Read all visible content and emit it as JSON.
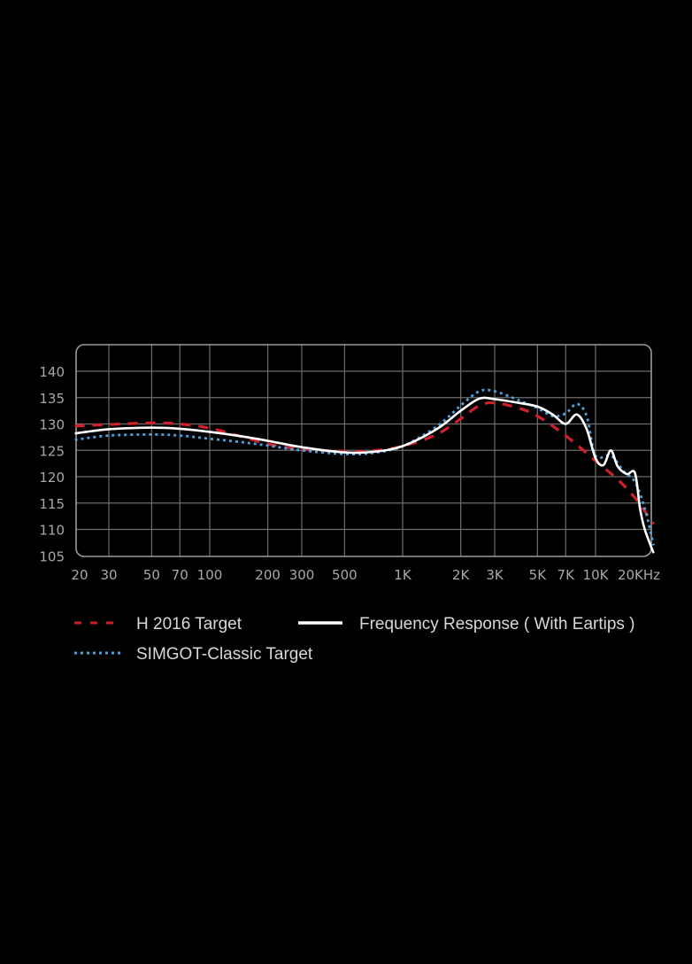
{
  "chart_data": {
    "type": "line",
    "title": "",
    "xlabel": "",
    "ylabel": "",
    "x_scale": "log",
    "xlim": [
      20,
      20000
    ],
    "ylim": [
      105,
      140
    ],
    "grid": true,
    "legend_position": "bottom",
    "y_ticks": [
      140,
      135,
      130,
      125,
      120,
      115,
      110,
      105
    ],
    "x_ticks": [
      {
        "value": 20,
        "label": "20"
      },
      {
        "value": 30,
        "label": "30"
      },
      {
        "value": 50,
        "label": "50"
      },
      {
        "value": 70,
        "label": "70"
      },
      {
        "value": 100,
        "label": "100"
      },
      {
        "value": 200,
        "label": "200"
      },
      {
        "value": 300,
        "label": "300"
      },
      {
        "value": 500,
        "label": "500"
      },
      {
        "value": 1000,
        "label": "1K"
      },
      {
        "value": 2000,
        "label": "2K"
      },
      {
        "value": 3000,
        "label": "3K"
      },
      {
        "value": 5000,
        "label": "5K"
      },
      {
        "value": 7000,
        "label": "7K"
      },
      {
        "value": 10000,
        "label": "10K"
      },
      {
        "value": 20000,
        "label": "20KHz"
      }
    ],
    "series": [
      {
        "name": "H 2016  Target",
        "color": "#d0202c",
        "style": "dashed",
        "x": [
          20,
          30,
          50,
          70,
          100,
          150,
          200,
          300,
          500,
          700,
          1000,
          1500,
          2000,
          2500,
          3000,
          4000,
          5000,
          7000,
          10000,
          13000,
          16000,
          20000
        ],
        "y": [
          129.6,
          129.9,
          130.2,
          130.0,
          129.2,
          127.5,
          126.2,
          125.2,
          124.8,
          124.9,
          125.8,
          128.0,
          131.0,
          133.5,
          134.0,
          133.0,
          131.5,
          127.8,
          123.0,
          119.5,
          116.0,
          111.0
        ]
      },
      {
        "name": "SIMGOT-Classic Target",
        "color": "#4aa3df",
        "style": "dotted",
        "x": [
          20,
          30,
          50,
          70,
          100,
          150,
          200,
          300,
          500,
          700,
          1000,
          1500,
          2000,
          2500,
          3000,
          4000,
          5000,
          6000,
          7000,
          8000,
          9000,
          10000,
          12000,
          14000,
          16000,
          18000,
          20000
        ],
        "y": [
          127.0,
          127.8,
          128.0,
          127.8,
          127.2,
          126.5,
          125.9,
          125.0,
          124.3,
          124.5,
          125.8,
          129.5,
          133.5,
          136.2,
          136.2,
          134.5,
          133.0,
          131.5,
          132.0,
          133.8,
          131.5,
          124.0,
          124.0,
          121.0,
          119.0,
          114.0,
          107.0
        ]
      },
      {
        "name": "Frequency Response ( With Eartips )",
        "color": "#ffffff",
        "style": "solid",
        "x": [
          20,
          30,
          50,
          70,
          100,
          150,
          200,
          300,
          500,
          700,
          1000,
          1500,
          2000,
          2500,
          3000,
          4000,
          5000,
          6000,
          7000,
          8000,
          9000,
          10000,
          11000,
          12000,
          13000,
          14500,
          16000,
          17000,
          18000,
          20000
        ],
        "y": [
          128.2,
          129.0,
          129.3,
          129.1,
          128.5,
          127.6,
          126.8,
          125.6,
          124.6,
          124.7,
          125.8,
          129.0,
          132.5,
          134.8,
          134.7,
          134.0,
          133.3,
          131.8,
          130.0,
          131.8,
          129.0,
          123.5,
          122.2,
          125.0,
          122.0,
          120.5,
          120.7,
          114.0,
          110.0,
          105.5
        ]
      }
    ]
  },
  "legend": {
    "items": [
      {
        "label": "H 2016  Target",
        "color": "#d0202c",
        "style": "dashed"
      },
      {
        "label": "Frequency Response ( With Eartips )",
        "color": "#ffffff",
        "style": "solid"
      },
      {
        "label": "SIMGOT-Classic Target",
        "color": "#4aa3df",
        "style": "dotted"
      }
    ]
  }
}
